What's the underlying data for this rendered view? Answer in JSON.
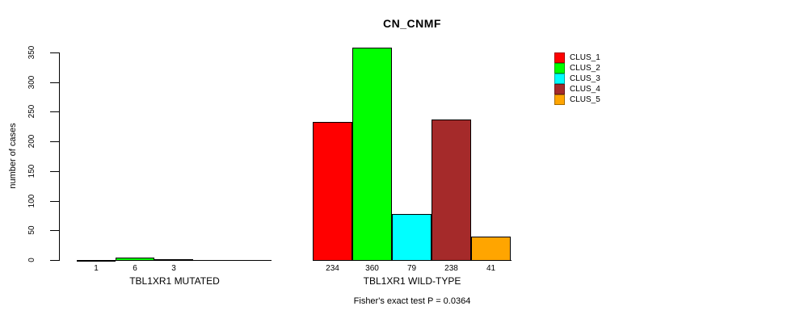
{
  "chart_data": {
    "type": "bar",
    "title": "CN_CNMF",
    "ylabel": "number of cases",
    "ylim": [
      0,
      350
    ],
    "yticks": [
      0,
      50,
      100,
      150,
      200,
      250,
      300,
      350
    ],
    "grid": false,
    "legend_position": "top-right",
    "categories": [
      "TBL1XR1 MUTATED",
      "TBL1XR1 WILD-TYPE"
    ],
    "series": [
      {
        "name": "CLUS_1",
        "color": "#FF0000",
        "values": [
          1,
          234
        ]
      },
      {
        "name": "CLUS_2",
        "color": "#00FF00",
        "values": [
          6,
          360
        ]
      },
      {
        "name": "CLUS_3",
        "color": "#00FFFF",
        "values": [
          3,
          79
        ]
      },
      {
        "name": "CLUS_4",
        "color": "#A52A2A",
        "values": [
          null,
          238
        ]
      },
      {
        "name": "CLUS_5",
        "color": "#FFA500",
        "values": [
          null,
          41
        ]
      }
    ],
    "caption": "Fisher's exact test P = 0.0364"
  }
}
